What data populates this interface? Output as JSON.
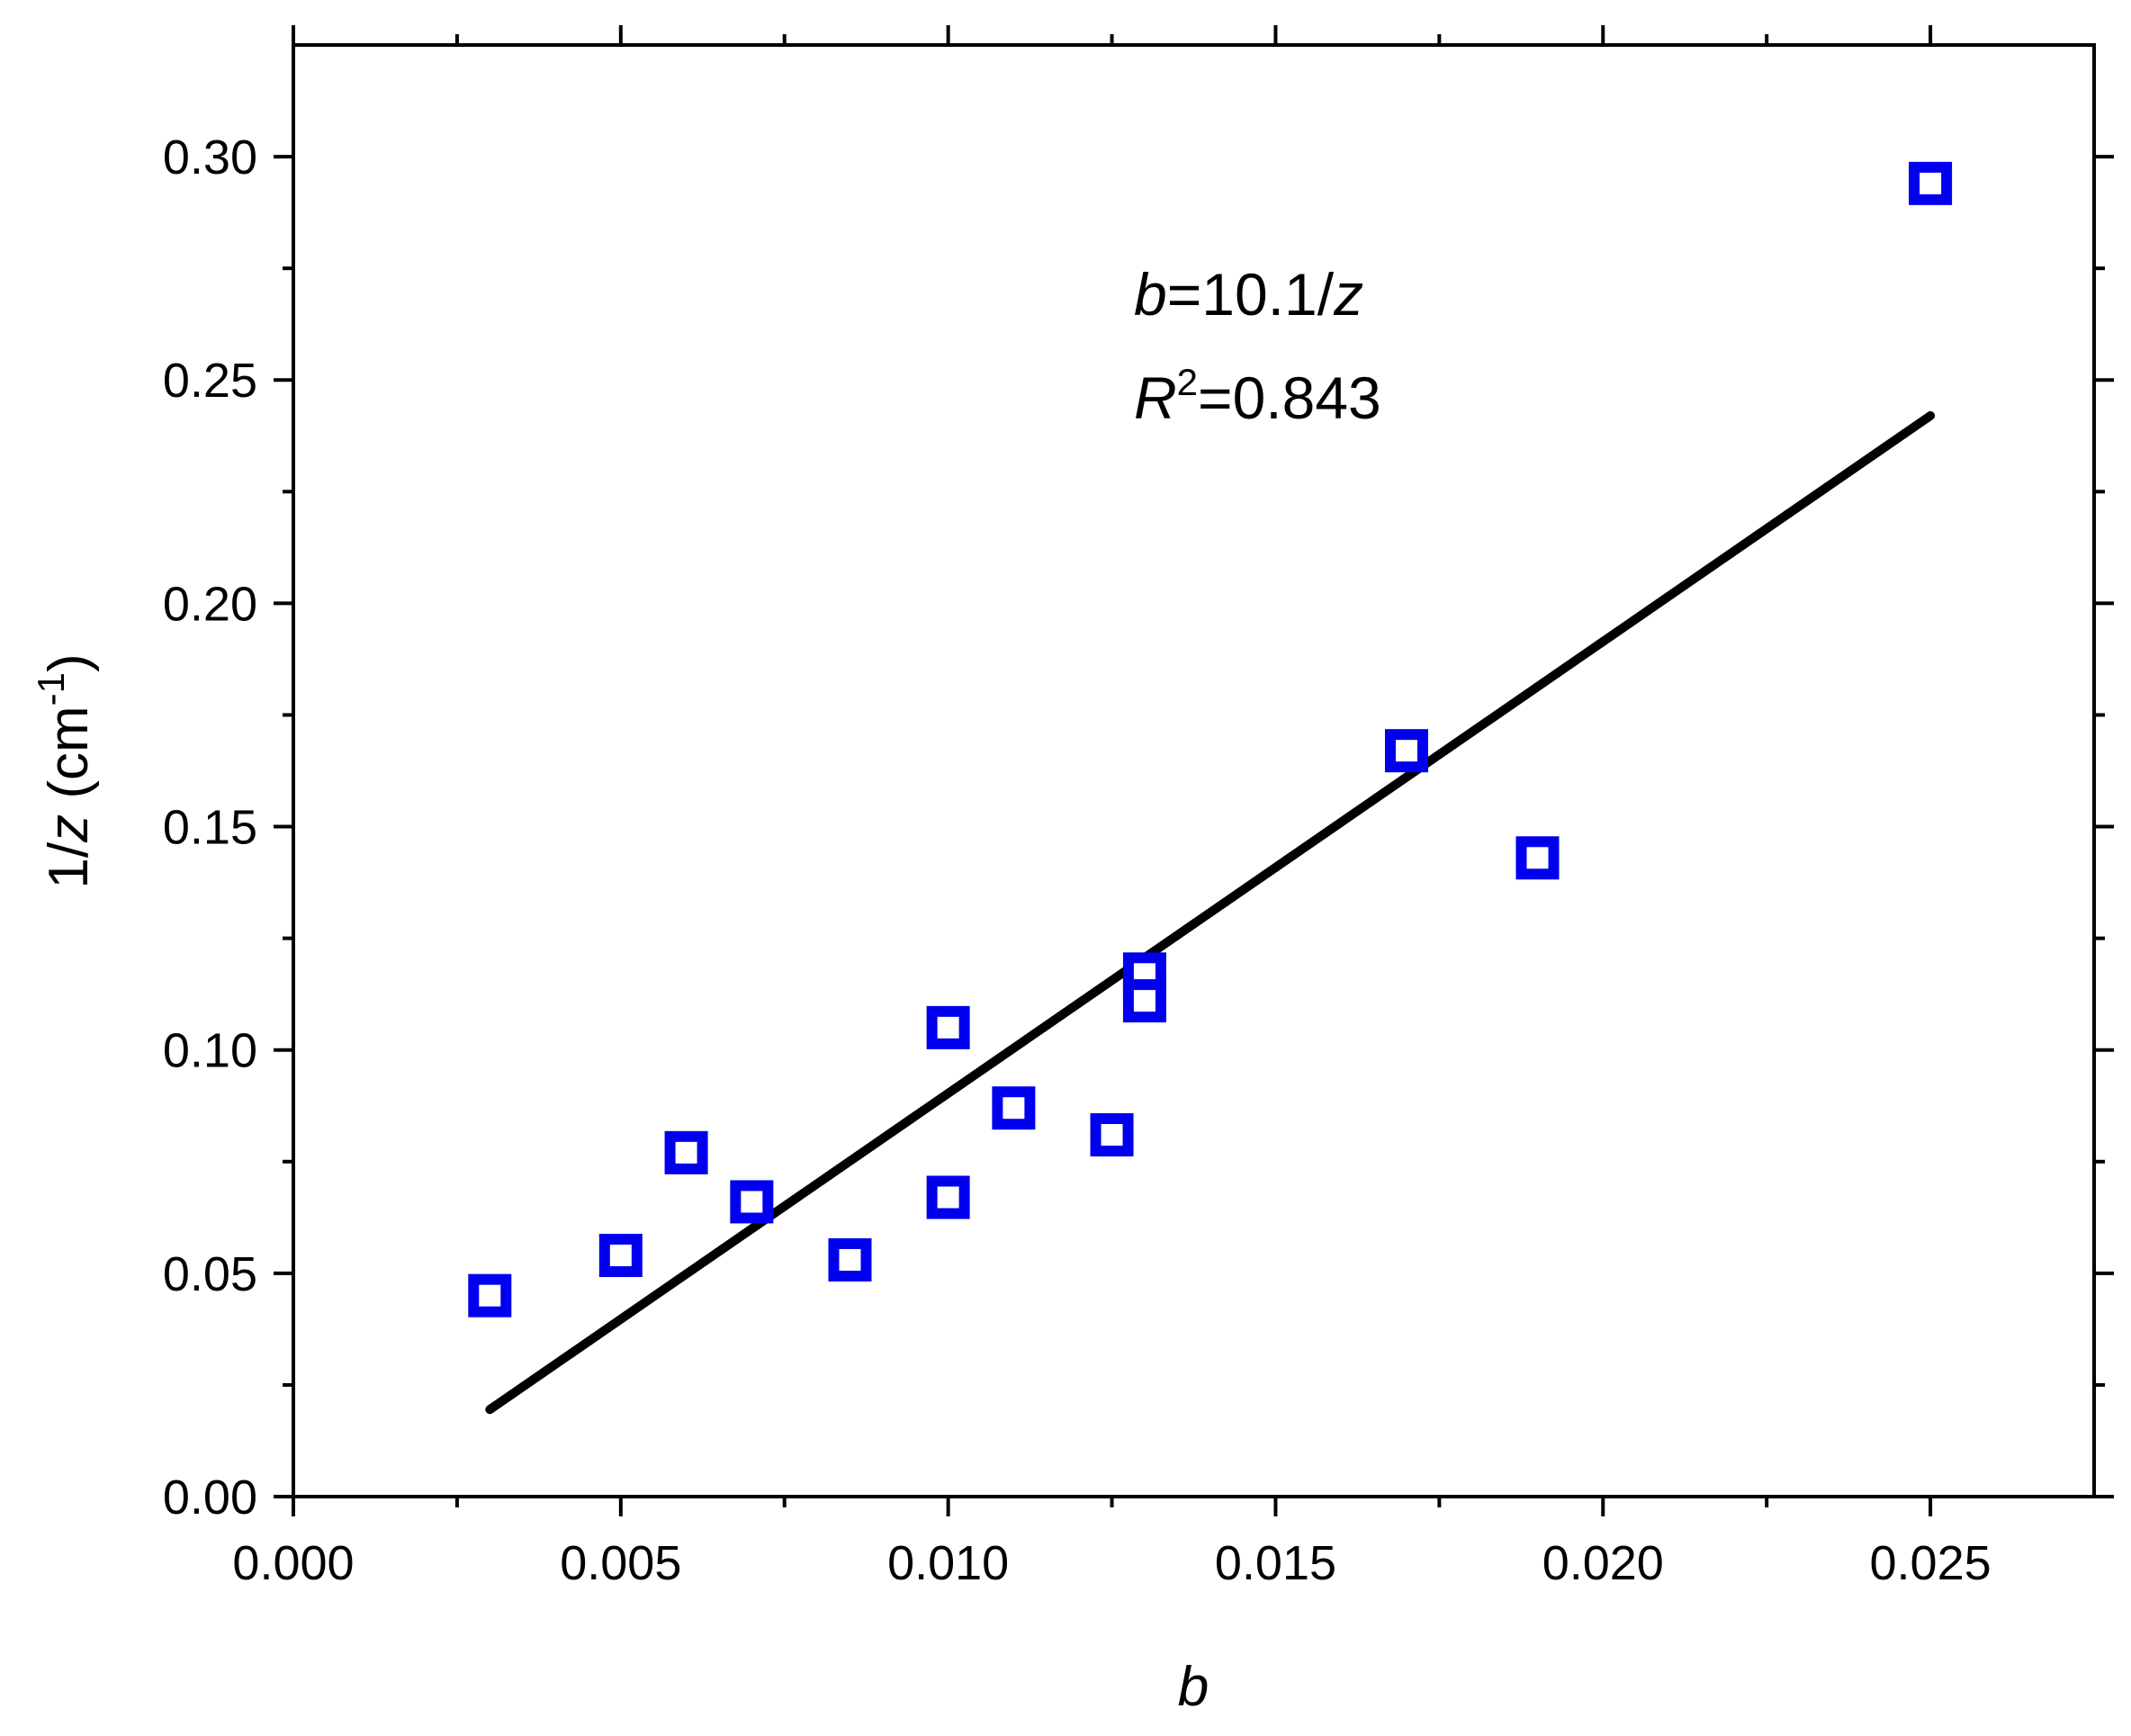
{
  "chart_data": {
    "type": "scatter",
    "xlabel": "b",
    "ylabel": "1/z (cm⁻¹)",
    "ylabel_parts": {
      "pre": "1/",
      "var": "z",
      "unit": " (cm",
      "sup": "-1",
      "close": ")"
    },
    "xlim": [
      0,
      0.0275
    ],
    "ylim": [
      0,
      0.325
    ],
    "x_ticks": [
      0.0,
      0.005,
      0.01,
      0.015,
      0.02,
      0.025
    ],
    "x_tick_labels": [
      "0.000",
      "0.005",
      "0.010",
      "0.015",
      "0.020",
      "0.025"
    ],
    "y_ticks": [
      0.0,
      0.05,
      0.1,
      0.15,
      0.2,
      0.25,
      0.3
    ],
    "y_tick_labels": [
      "0.00",
      "0.05",
      "0.10",
      "0.15",
      "0.20",
      "0.25",
      "0.30"
    ],
    "grid": false,
    "series": [
      {
        "marker": "open-square",
        "color": "#0000ee",
        "points": [
          {
            "x": 0.003,
            "y": 0.045
          },
          {
            "x": 0.005,
            "y": 0.054
          },
          {
            "x": 0.006,
            "y": 0.077
          },
          {
            "x": 0.007,
            "y": 0.066
          },
          {
            "x": 0.0085,
            "y": 0.053
          },
          {
            "x": 0.01,
            "y": 0.105
          },
          {
            "x": 0.01,
            "y": 0.067
          },
          {
            "x": 0.011,
            "y": 0.087
          },
          {
            "x": 0.0125,
            "y": 0.081
          },
          {
            "x": 0.013,
            "y": 0.117
          },
          {
            "x": 0.013,
            "y": 0.111
          },
          {
            "x": 0.017,
            "y": 0.167
          },
          {
            "x": 0.019,
            "y": 0.143
          },
          {
            "x": 0.025,
            "y": 0.294
          }
        ]
      }
    ],
    "fit_line": {
      "color": "#000000",
      "x": [
        0.003,
        0.025
      ],
      "y": [
        0.0195,
        0.242
      ]
    },
    "annotations": {
      "equation": {
        "var": "b",
        "rest": "=10.1/",
        "var2": "z"
      },
      "r2": {
        "var": "R",
        "sup": "2",
        "rest": "=0.843"
      }
    }
  }
}
